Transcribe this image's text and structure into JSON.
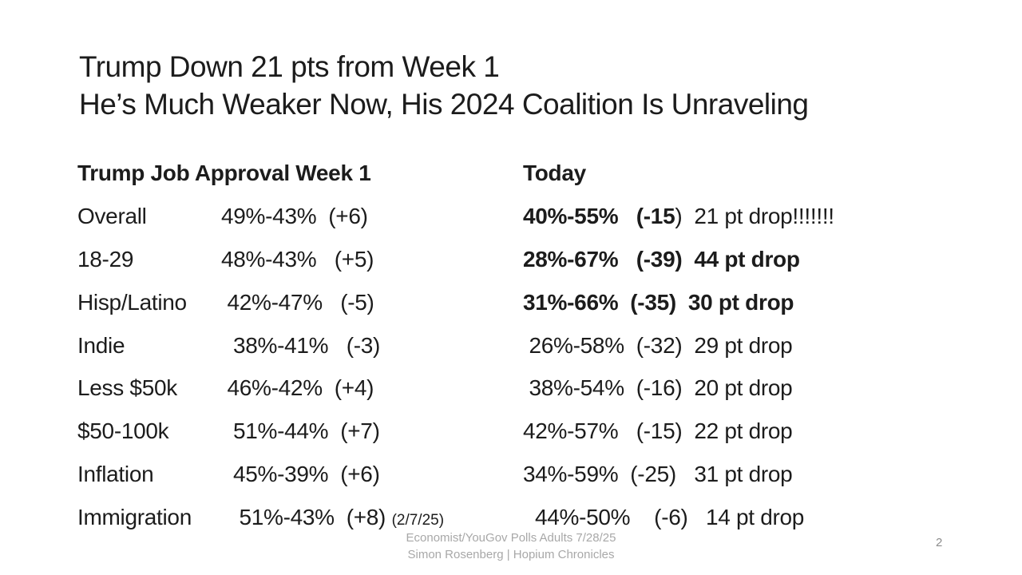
{
  "slide": {
    "title_line1": "Trump Down 21 pts from Week 1",
    "title_line2": "He’s Much Weaker Now, His 2024 Coalition Is Unraveling",
    "table": {
      "header_week1": "Trump Job Approval Week 1",
      "header_today": "Today",
      "rows": [
        {
          "label": "Overall",
          "week1": "49%-43%  (+6)",
          "note": "",
          "today_bold": "40%-55%   (-15",
          "today_regular": ")  21 pt drop!!!!!!!"
        },
        {
          "label": "18-29",
          "week1": "48%-43%   (+5)",
          "note": "",
          "today_bold": "28%-67%   (-39)  44 pt drop",
          "today_regular": ""
        },
        {
          "label": "Hisp/Latino",
          "week1": " 42%-47%   (-5)",
          "note": "",
          "today_bold": "31%-66%  (-35)  30 pt drop",
          "today_regular": ""
        },
        {
          "label": "Indie",
          "week1": "  38%-41%   (-3)",
          "note": "",
          "today_bold": "",
          "today_regular": " 26%-58%  (-32)  29 pt drop"
        },
        {
          "label": "Less $50k",
          "week1": " 46%-42%  (+4)",
          "note": "",
          "today_bold": "",
          "today_regular": " 38%-54%  (-16)  20 pt drop"
        },
        {
          "label": "$50-100k",
          "week1": "  51%-44%  (+7)",
          "note": "",
          "today_bold": "",
          "today_regular": "42%-57%   (-15)  22 pt drop"
        },
        {
          "label": "Inflation",
          "week1": "  45%-39%  (+6)",
          "note": "",
          "today_bold": "",
          "today_regular": "34%-59%  (-25)   31 pt drop"
        },
        {
          "label": "Immigration",
          "week1": "   51%-43%  (+8) ",
          "note": "(2/7/25)",
          "today_bold": "",
          "today_regular": "  44%-50%    (-6)   14 pt drop"
        }
      ]
    },
    "footer": {
      "line1": "Economist/YouGov Polls Adults 7/28/25",
      "line2": "Simon Rosenberg | Hopium Chronicles",
      "page_number": "2"
    },
    "colors": {
      "background": "#ffffff",
      "text": "#1c1c1c",
      "footer_gray": "#a8a8a8",
      "page_gray": "#8c8c8c"
    }
  }
}
